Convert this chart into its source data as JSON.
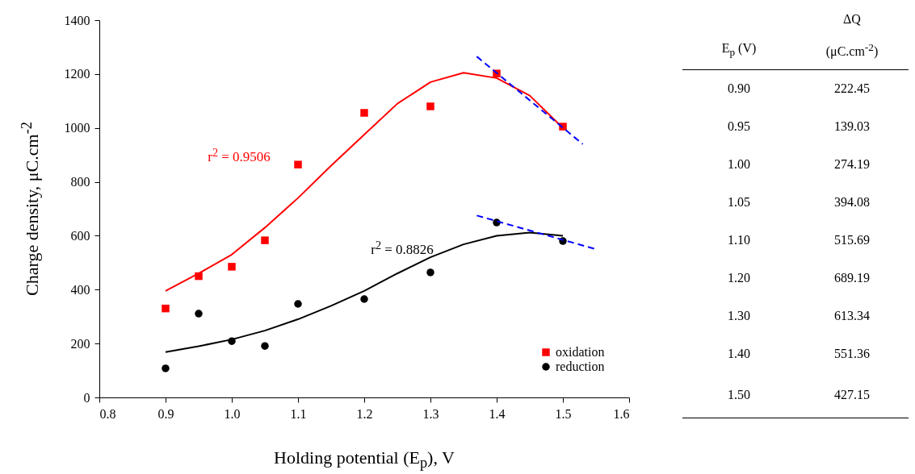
{
  "chart_data": [
    {
      "type": "scatter",
      "xlabel": "Holding potential (E$_{p}$), V",
      "ylabel": "Charge density, μC.cm$^{-2}$",
      "xlim": [
        0.8,
        1.6
      ],
      "xticks": [
        0.8,
        0.9,
        {
          "value": 1.0,
          "label": "1.0"
        },
        1.1,
        1.2,
        1.3,
        1.4,
        1.5,
        1.6
      ],
      "ylim": [
        0,
        1400
      ],
      "yticks": [
        0,
        200,
        400,
        600,
        800,
        1000,
        1200,
        1400
      ],
      "grid": false,
      "legend": "bottom right",
      "x": [
        0.9,
        0.95,
        1.0,
        1.05,
        1.1,
        1.2,
        1.3,
        1.4,
        1.5
      ],
      "series": [
        {
          "name": "oxidation",
          "color": "#ff0000",
          "marker": "square",
          "values": [
            330,
            450,
            485,
            583,
            864,
            1056,
            1080,
            1202,
            1005
          ]
        },
        {
          "name": "reduction",
          "color": "#000000",
          "marker": "circle",
          "values": [
            108,
            311,
            209,
            191,
            347,
            365,
            464,
            649,
            580
          ]
        },
        {
          "type": "line",
          "color": "#ff0000",
          "line_style": "solid",
          "x": [
            0.9,
            0.95,
            1.0,
            1.05,
            1.1,
            1.15,
            1.2,
            1.25,
            1.3,
            1.35,
            1.4,
            1.45,
            1.5
          ],
          "values": [
            395,
            460,
            530,
            630,
            740,
            860,
            975,
            1090,
            1170,
            1205,
            1185,
            1120,
            1000
          ]
        },
        {
          "type": "line",
          "color": "#000000",
          "line_style": "solid",
          "x": [
            0.9,
            0.95,
            1.0,
            1.05,
            1.1,
            1.15,
            1.2,
            1.25,
            1.3,
            1.35,
            1.4,
            1.45,
            1.5
          ],
          "values": [
            168,
            190,
            215,
            248,
            290,
            340,
            395,
            460,
            520,
            568,
            600,
            612,
            600
          ]
        },
        {
          "type": "line",
          "color": "#0000ff",
          "line_style": "dashed",
          "x": [
            1.37,
            1.53
          ],
          "values": [
            1265,
            940
          ]
        },
        {
          "type": "line",
          "color": "#0000ff",
          "line_style": "dashed",
          "x": [
            1.37,
            1.55
          ],
          "values": [
            675,
            550
          ]
        }
      ],
      "annotations": [
        "r$^{2}$ = 0.9506",
        "r$^{2}$ = 0.8826"
      ]
    },
    {
      "type": "heatmap",
      "ylabel": "E$_{p}$ (V)",
      "categories": [
        "ΔQ (μC.cm$^{-2}$)"
      ],
      "y_categories": [
        "0.90",
        "0.95",
        "1.00",
        "1.05",
        "1.10",
        "1.20",
        "1.30",
        "1.40",
        "1.50"
      ],
      "cells": [
        [
          222.45
        ],
        [
          139.03
        ],
        [
          274.19
        ],
        [
          394.08
        ],
        [
          515.69
        ],
        [
          689.19
        ],
        [
          613.34
        ],
        [
          551.36
        ],
        [
          427.15
        ]
      ],
      "data_labels": true
    }
  ]
}
